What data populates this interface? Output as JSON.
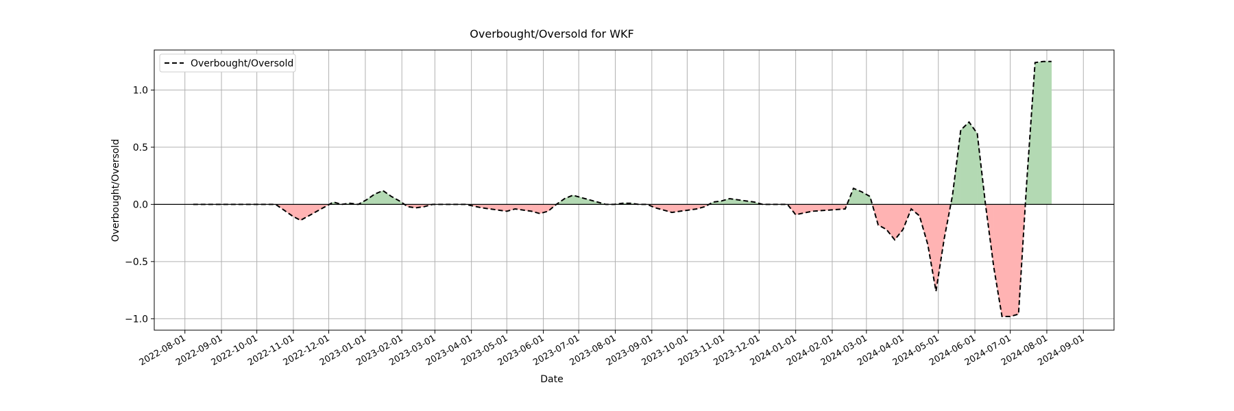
{
  "chart_data": {
    "type": "line",
    "title": "Overbought/Oversold for WKF",
    "xlabel": "Date",
    "ylabel": "Overbought/Oversold",
    "xlim": [
      "2022-07-06",
      "2024-09-27"
    ],
    "ylim": [
      -1.1,
      1.35
    ],
    "x_ticks": [
      "2022-08-01",
      "2022-09-01",
      "2022-10-01",
      "2022-11-01",
      "2022-12-01",
      "2023-01-01",
      "2023-02-01",
      "2023-03-01",
      "2023-04-01",
      "2023-05-01",
      "2023-06-01",
      "2023-07-01",
      "2023-08-01",
      "2023-09-01",
      "2023-10-01",
      "2023-11-01",
      "2023-12-01",
      "2024-01-01",
      "2024-02-01",
      "2024-03-01",
      "2024-04-01",
      "2024-05-01",
      "2024-06-01",
      "2024-07-01",
      "2024-08-01",
      "2024-09-01"
    ],
    "y_ticks": [
      1.0,
      0.5,
      0.0,
      -0.5,
      -1.0
    ],
    "y_tick_labels": [
      "1.0",
      "0.5",
      "0.0",
      "−0.5",
      "−1.0"
    ],
    "grid": true,
    "legend": {
      "position": "top-left"
    },
    "fill_between_zero": {
      "positive_color": "#b3d9b3",
      "negative_color": "#ffb3b3"
    },
    "zero_line_color": "#000000",
    "series": [
      {
        "name": "Overbought/Oversold",
        "style": "dashed",
        "color": "#000000",
        "x": [
          "2022-08-08",
          "2022-08-22",
          "2022-09-05",
          "2022-09-19",
          "2022-10-03",
          "2022-10-17",
          "2022-10-24",
          "2022-10-31",
          "2022-11-07",
          "2022-11-14",
          "2022-11-21",
          "2022-11-28",
          "2022-12-05",
          "2022-12-12",
          "2022-12-19",
          "2022-12-26",
          "2023-01-02",
          "2023-01-09",
          "2023-01-16",
          "2023-01-23",
          "2023-01-30",
          "2023-02-06",
          "2023-02-13",
          "2023-02-20",
          "2023-02-27",
          "2023-03-06",
          "2023-03-13",
          "2023-03-27",
          "2023-04-10",
          "2023-04-24",
          "2023-05-01",
          "2023-05-08",
          "2023-05-15",
          "2023-05-22",
          "2023-05-29",
          "2023-06-05",
          "2023-06-12",
          "2023-06-19",
          "2023-06-26",
          "2023-07-03",
          "2023-07-10",
          "2023-07-17",
          "2023-07-24",
          "2023-07-31",
          "2023-08-07",
          "2023-08-14",
          "2023-08-21",
          "2023-08-28",
          "2023-09-04",
          "2023-09-11",
          "2023-09-18",
          "2023-10-02",
          "2023-10-09",
          "2023-10-16",
          "2023-10-23",
          "2023-10-30",
          "2023-11-06",
          "2023-11-13",
          "2023-11-20",
          "2023-11-27",
          "2023-12-04",
          "2023-12-11",
          "2023-12-18",
          "2023-12-25",
          "2024-01-01",
          "2024-01-15",
          "2024-01-29",
          "2024-02-12",
          "2024-02-19",
          "2024-02-26",
          "2024-03-04",
          "2024-03-11",
          "2024-03-18",
          "2024-03-25",
          "2024-04-01",
          "2024-04-08",
          "2024-04-15",
          "2024-04-22",
          "2024-04-29",
          "2024-05-06",
          "2024-05-13",
          "2024-05-20",
          "2024-05-27",
          "2024-06-03",
          "2024-06-10",
          "2024-06-17",
          "2024-06-24",
          "2024-07-01",
          "2024-07-08",
          "2024-07-15",
          "2024-07-22",
          "2024-07-29",
          "2024-08-05"
        ],
        "values": [
          0.0,
          0.0,
          0.0,
          0.0,
          0.0,
          0.0,
          -0.05,
          -0.1,
          -0.14,
          -0.1,
          -0.06,
          -0.02,
          0.02,
          0.0,
          0.01,
          0.0,
          0.04,
          0.09,
          0.12,
          0.07,
          0.03,
          -0.02,
          -0.03,
          -0.02,
          0.0,
          0.0,
          0.0,
          0.0,
          -0.03,
          -0.05,
          -0.06,
          -0.04,
          -0.05,
          -0.06,
          -0.08,
          -0.06,
          0.0,
          0.05,
          0.08,
          0.06,
          0.04,
          0.02,
          0.0,
          0.0,
          0.01,
          0.01,
          0.0,
          0.0,
          -0.03,
          -0.05,
          -0.07,
          -0.05,
          -0.04,
          -0.02,
          0.02,
          0.03,
          0.05,
          0.04,
          0.03,
          0.02,
          0.0,
          0.0,
          0.0,
          0.0,
          -0.09,
          -0.06,
          -0.05,
          -0.04,
          0.14,
          0.11,
          0.07,
          -0.18,
          -0.22,
          -0.31,
          -0.22,
          -0.04,
          -0.1,
          -0.35,
          -0.76,
          -0.3,
          0.08,
          0.65,
          0.72,
          0.62,
          0.0,
          -0.55,
          -0.98,
          -0.98,
          -0.96,
          0.2,
          1.24,
          1.25,
          1.25
        ]
      }
    ]
  }
}
